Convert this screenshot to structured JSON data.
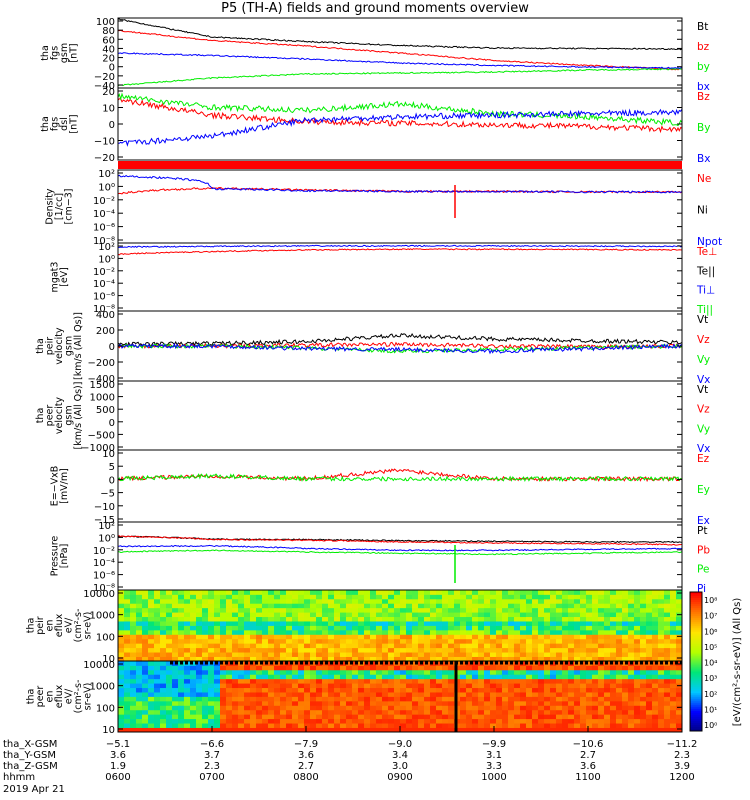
{
  "title": "P5 (TH-A) fields and ground moments overview",
  "colors": {
    "black": "#000000",
    "red": "#ff0000",
    "green": "#00ee00",
    "blue": "#0000ff"
  },
  "panels": [
    {
      "ylabel_lines": [
        "tha",
        "fgs",
        "gsm",
        "[nT]"
      ],
      "yticks": [
        "100",
        "80",
        "60",
        "40",
        "20",
        "0",
        "−20",
        "−40"
      ],
      "legend": [
        {
          "text": "Bt",
          "color": "#000000"
        },
        {
          "text": "bz",
          "color": "#ff0000"
        },
        {
          "text": "by",
          "color": "#00ee00"
        },
        {
          "text": "bx",
          "color": "#0000ff"
        }
      ]
    },
    {
      "ylabel_lines": [
        "tha",
        "fgs",
        "dsl",
        "[nT]"
      ],
      "yticks": [
        "20",
        "10",
        "0",
        "−10",
        "−20"
      ],
      "legend": [
        {
          "text": "Bz",
          "color": "#ff0000"
        },
        {
          "text": "By",
          "color": "#00ee00"
        },
        {
          "text": "Bx",
          "color": "#0000ff"
        }
      ]
    },
    {
      "ylabel_lines": [
        "Density",
        "[1/cc]",
        "[cm−3]"
      ],
      "yticks": [
        "10²",
        "10⁰",
        "10⁻²",
        "10⁻⁴",
        "10⁻⁶",
        "10⁻⁸"
      ],
      "legend": [
        {
          "text": "Ne",
          "color": "#ff0000"
        },
        {
          "text": "Ni",
          "color": "#000000"
        },
        {
          "text": "Npot",
          "color": "#0000ff"
        }
      ]
    },
    {
      "ylabel_lines": [
        "mgat3",
        "[eV]"
      ],
      "yticks": [
        "10²",
        "10⁰",
        "10⁻²",
        "10⁻⁴",
        "10⁻⁶",
        "10⁻⁸"
      ],
      "legend": [
        {
          "text": "Te⊥",
          "color": "#ff0000"
        },
        {
          "text": "Te||",
          "color": "#000000"
        },
        {
          "text": "Ti⊥",
          "color": "#0000ff"
        },
        {
          "text": "Ti||",
          "color": "#00ee00"
        }
      ]
    },
    {
      "ylabel_lines": [
        "tha",
        "peir",
        "velocity",
        "gsm",
        "[km/s (All Qs)]"
      ],
      "yticks": [
        "400",
        "200",
        "0",
        "−200",
        "−400"
      ],
      "legend": [
        {
          "text": "Vt",
          "color": "#000000"
        },
        {
          "text": "Vz",
          "color": "#ff0000"
        },
        {
          "text": "Vy",
          "color": "#00ee00"
        },
        {
          "text": "Vx",
          "color": "#0000ff"
        }
      ]
    },
    {
      "ylabel_lines": [
        "tha",
        "peer",
        "velocity",
        "gsm",
        "[km/s (All Qs)]"
      ],
      "yticks": [
        "1500",
        "1000",
        "500",
        "0",
        "−500",
        "−1000"
      ],
      "legend": [
        {
          "text": "Vt",
          "color": "#000000"
        },
        {
          "text": "Vz",
          "color": "#ff0000"
        },
        {
          "text": "Vy",
          "color": "#00ee00"
        },
        {
          "text": "Vx",
          "color": "#0000ff"
        }
      ]
    },
    {
      "ylabel_lines": [
        "E=−VxB",
        "[mV/m]"
      ],
      "yticks": [
        "10",
        "5",
        "0",
        "−5",
        "−10",
        "−15"
      ],
      "legend": [
        {
          "text": "Ez",
          "color": "#ff0000"
        },
        {
          "text": "Ey",
          "color": "#00ee00"
        },
        {
          "text": "Ex",
          "color": "#0000ff"
        }
      ]
    },
    {
      "ylabel_lines": [
        "Pressure",
        "[nPa]"
      ],
      "yticks": [
        "10²",
        "10⁰",
        "10⁻²",
        "10⁻⁴",
        "10⁻⁶",
        "10⁻⁸"
      ],
      "legend": [
        {
          "text": "Pt",
          "color": "#000000"
        },
        {
          "text": "Pb",
          "color": "#ff0000"
        },
        {
          "text": "Pe",
          "color": "#00ee00"
        },
        {
          "text": "Pi",
          "color": "#0000ff"
        }
      ]
    },
    {
      "ylabel_lines": [
        "tha",
        "peir",
        "en",
        "eflux",
        "eV/",
        "(cm²-s-",
        "sr-eV)"
      ],
      "yticks": [
        "10000",
        "1000",
        "100",
        "10"
      ],
      "legend": []
    },
    {
      "ylabel_lines": [
        "tha",
        "peer",
        "en",
        "eflux",
        "eV/",
        "(cm²-s-",
        "sr-eV)"
      ],
      "yticks": [
        "10000",
        "1000",
        "100",
        "10"
      ],
      "legend": []
    }
  ],
  "colorbar": {
    "label": "[eV/(cm²-s-sr-eV)] (All Qs)",
    "ticks": [
      "10⁸",
      "10⁷",
      "10⁶",
      "10⁵",
      "10⁴",
      "10³",
      "10²",
      "10¹",
      "10⁰"
    ]
  },
  "xaxis": {
    "rows": [
      {
        "label": "tha_X-GSM",
        "values": [
          "−5.1",
          "−6.6",
          "−7.9",
          "−9.0",
          "−9.9",
          "−10.6",
          "−11.2"
        ]
      },
      {
        "label": "tha_Y-GSM",
        "values": [
          "3.6",
          "3.7",
          "3.6",
          "3.4",
          "3.1",
          "2.7",
          "2.3"
        ]
      },
      {
        "label": "tha_Z-GSM",
        "values": [
          "1.9",
          "2.3",
          "2.7",
          "3.0",
          "3.3",
          "3.6",
          "3.9"
        ]
      },
      {
        "label": "hhmm",
        "values": [
          "0600",
          "0700",
          "0800",
          "0900",
          "1000",
          "1100",
          "1200"
        ]
      }
    ],
    "date": "2019 Apr 21"
  },
  "chart_data": {
    "type": "line",
    "title": "P5 (TH-A) fields and ground moments overview",
    "x": [
      "0600",
      "0700",
      "0800",
      "0900",
      "1000",
      "1100",
      "1200"
    ],
    "xlabel": "hhmm",
    "panels": [
      {
        "ylabel": "tha fgs gsm [nT]",
        "ylim": [
          -40,
          100
        ],
        "series": [
          {
            "name": "Bt",
            "values": [
              98,
              62,
              53,
              45,
              40,
              39,
              38
            ]
          },
          {
            "name": "bz",
            "values": [
              75,
              55,
              44,
              30,
              15,
              5,
              -3
            ]
          },
          {
            "name": "by",
            "values": [
              -35,
              -20,
              -12,
              -10,
              -8,
              -4,
              -2
            ]
          },
          {
            "name": "bx",
            "values": [
              30,
              25,
              18,
              10,
              5,
              2,
              0
            ]
          }
        ]
      },
      {
        "ylabel": "tha fgs dsl [nT]",
        "ylim": [
          -25,
          20
        ],
        "series": [
          {
            "name": "Bz",
            "values": [
              13,
              3,
              -1,
              -2,
              -3,
              -4,
              -6
            ]
          },
          {
            "name": "By",
            "values": [
              15,
              8,
              6,
              10,
              4,
              2,
              -2
            ]
          },
          {
            "name": "Bx",
            "values": [
              -15,
              -10,
              0,
              2,
              3,
              4,
              5
            ]
          }
        ]
      },
      {
        "ylabel": "Density [1/cc] [cm-3]",
        "ylim": [
          1e-09,
          1000.0
        ],
        "series": [
          {
            "name": "Ne",
            "values": [
              0.1,
              1,
              0.5,
              0.3,
              0.3,
              0.25,
              0.25
            ]
          },
          {
            "name": "Npot",
            "values": [
              100,
              0.8,
              0.4,
              0.3,
              0.3,
              0.25,
              0.25
            ]
          }
        ]
      },
      {
        "ylabel": "mgat3 [eV]",
        "ylim": [
          1e-09,
          1000.0
        ],
        "series": [
          {
            "name": "Te⊥",
            "values": [
              10,
              30,
              60,
              80,
              80,
              70,
              60
            ]
          },
          {
            "name": "Ti⊥",
            "values": [
              200,
              250,
              300,
              300,
              300,
              280,
              260
            ]
          }
        ]
      },
      {
        "ylabel": "tha peir velocity gsm [km/s (All Qs)]",
        "ylim": [
          -400,
          400
        ],
        "series": [
          {
            "name": "Vt",
            "values": [
              20,
              30,
              50,
              120,
              80,
              60,
              40
            ]
          },
          {
            "name": "Vz",
            "values": [
              0,
              0,
              10,
              20,
              0,
              -10,
              0
            ]
          },
          {
            "name": "Vy",
            "values": [
              0,
              0,
              -20,
              -60,
              -40,
              -20,
              0
            ]
          },
          {
            "name": "Vx",
            "values": [
              0,
              0,
              -30,
              -40,
              -60,
              -30,
              0
            ]
          }
        ]
      },
      {
        "ylabel": "tha peer velocity gsm [km/s (All Qs)]",
        "ylim": [
          -1000,
          1500
        ],
        "series": []
      },
      {
        "ylabel": "E=-VxB [mV/m]",
        "ylim": [
          -15,
          10
        ],
        "series": [
          {
            "name": "Ez",
            "values": [
              0,
              1,
              0,
              3,
              0,
              0,
              0
            ]
          },
          {
            "name": "Ey",
            "values": [
              0,
              1,
              0,
              0,
              0,
              0,
              0
            ]
          }
        ]
      },
      {
        "ylabel": "Pressure [nPa]",
        "ylim": [
          1e-09,
          1000.0
        ],
        "series": [
          {
            "name": "Pt",
            "values": [
              3,
              0.9,
              0.8,
              0.5,
              0.4,
              0.3,
              0.3
            ]
          },
          {
            "name": "Pb",
            "values": [
              3,
              0.8,
              0.6,
              0.3,
              0.2,
              0.15,
              0.1
            ]
          },
          {
            "name": "Pe",
            "values": [
              0.005,
              0.01,
              0.005,
              0.003,
              0.002,
              0.003,
              0.005
            ]
          },
          {
            "name": "Pi",
            "values": [
              0.05,
              0.06,
              0.02,
              0.01,
              0.01,
              0.015,
              0.02
            ]
          }
        ]
      }
    ]
  }
}
